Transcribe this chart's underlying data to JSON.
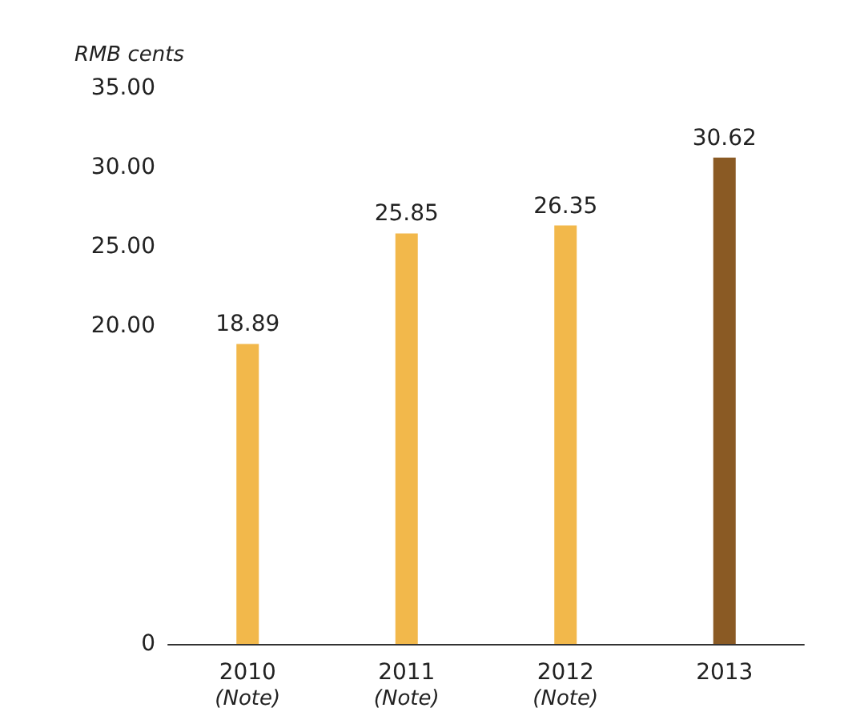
{
  "chart_data": {
    "type": "bar",
    "ylabel": "RMB cents",
    "categories": [
      "2010 (Note)",
      "2011 (Note)",
      "2012 (Note)",
      "2013"
    ],
    "values": [
      18.89,
      25.85,
      26.35,
      30.62
    ],
    "colors": [
      "#f2b84b",
      "#f2b84b",
      "#f2b84b",
      "#8a5a24"
    ],
    "ylim": [
      0,
      35
    ],
    "yticks": [
      0,
      {
        "value": 20,
        "label": "20.00"
      },
      {
        "value": 25,
        "label": "25.00"
      },
      {
        "value": 30,
        "label": "30.00"
      },
      {
        "value": 35,
        "label": "35.00"
      }
    ],
    "data_labels": true,
    "grid": false
  }
}
